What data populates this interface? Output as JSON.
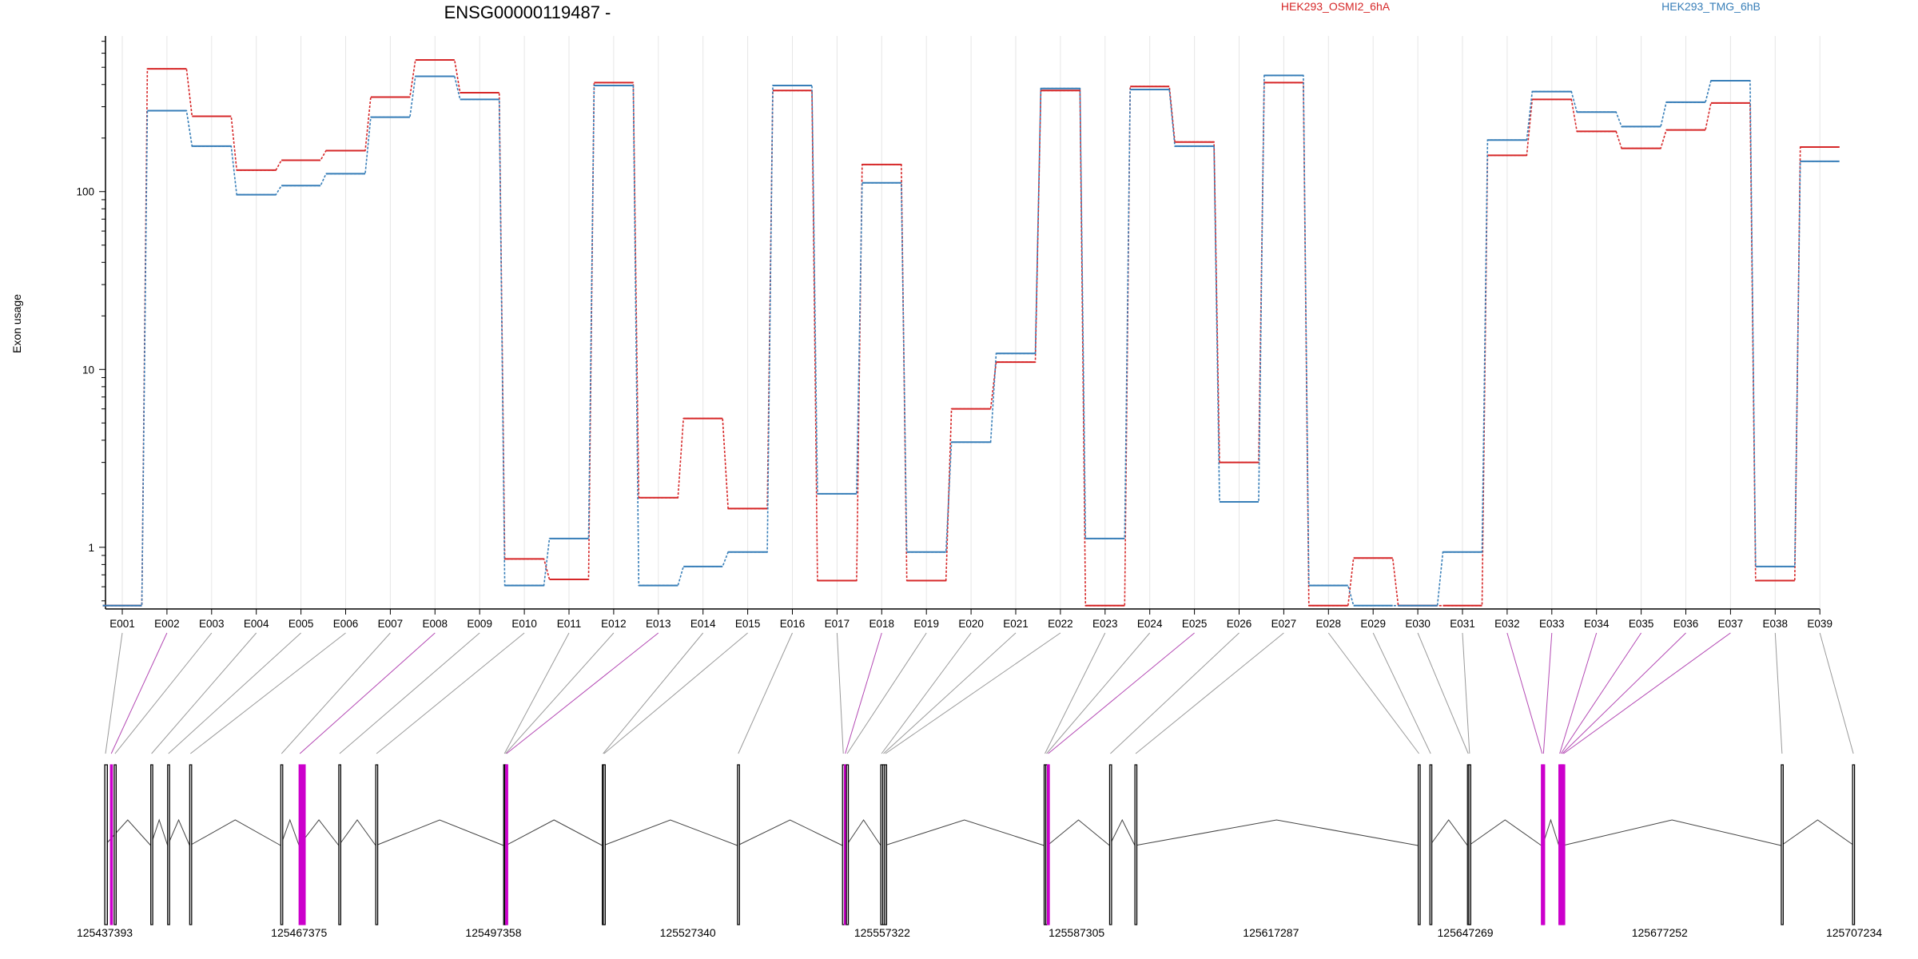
{
  "chart_data": {
    "type": "line",
    "title": "ENSG00000119487 -",
    "ylabel": "Exon usage",
    "xlabel": "",
    "y_scale": "log",
    "ylim": [
      0.45,
      750
    ],
    "y_ticks": [
      1,
      10,
      100
    ],
    "grid": "vertical lines at each exon",
    "legend_placement": "top-right",
    "categories": [
      "E001",
      "E002",
      "E003",
      "E004",
      "E005",
      "E006",
      "E007",
      "E008",
      "E009",
      "E010",
      "E011",
      "E012",
      "E013",
      "E014",
      "E015",
      "E016",
      "E017",
      "E018",
      "E019",
      "E020",
      "E021",
      "E022",
      "E023",
      "E024",
      "E025",
      "E026",
      "E027",
      "E028",
      "E029",
      "E030",
      "E031",
      "E032",
      "E033",
      "E034",
      "E035",
      "E036",
      "E037",
      "E038",
      "E039"
    ],
    "series": [
      {
        "name": "HEK293_OSMI2_6hA",
        "color": "#d62728",
        "values": [
          0.47,
          490,
          265,
          132,
          150,
          170,
          340,
          550,
          360,
          0.86,
          0.66,
          410,
          1.9,
          5.3,
          1.65,
          370,
          0.65,
          142,
          0.65,
          6.0,
          11.0,
          370,
          0.47,
          390,
          190,
          3.0,
          410,
          0.47,
          0.87,
          0.47,
          0.47,
          160,
          330,
          218,
          175,
          222,
          315,
          0.65,
          178
        ]
      },
      {
        "name": "HEK293_TMG_6hB",
        "color": "#377eb8",
        "values": [
          0.47,
          285,
          180,
          96,
          108,
          126,
          262,
          445,
          330,
          0.61,
          1.12,
          395,
          0.61,
          0.78,
          0.94,
          395,
          2.0,
          112,
          0.94,
          3.9,
          12.3,
          380,
          1.12,
          375,
          180,
          1.8,
          450,
          0.61,
          0.47,
          0.47,
          0.94,
          195,
          365,
          280,
          232,
          318,
          420,
          0.78,
          148
        ]
      }
    ],
    "gene_model": {
      "coord_labels": [
        "125437393",
        "125467375",
        "125497358",
        "125527340",
        "125557322",
        "125587305",
        "125617287",
        "125647269",
        "125677252",
        "125707234"
      ],
      "coord_ticks": [
        125437393,
        125467375,
        125497358,
        125527340,
        125557322,
        125587305,
        125617287,
        125647269,
        125677252,
        125707234
      ],
      "coord_range": [
        125437393,
        125707234
      ],
      "exons": [
        {
          "id": "E001",
          "pos": 125437393,
          "width": 420,
          "highlight": false
        },
        {
          "id": "E002",
          "pos": 125438280,
          "width": 60,
          "highlight": true
        },
        {
          "id": "E003",
          "pos": 125438860,
          "width": 40,
          "highlight": false
        },
        {
          "id": "E004",
          "pos": 125444500,
          "width": 40,
          "highlight": false
        },
        {
          "id": "E005",
          "pos": 125447100,
          "width": 40,
          "highlight": false
        },
        {
          "id": "E006",
          "pos": 125450500,
          "width": 40,
          "highlight": false
        },
        {
          "id": "E007",
          "pos": 125464550,
          "width": 40,
          "highlight": false
        },
        {
          "id": "E008",
          "pos": 125467375,
          "width": 950,
          "highlight": true
        },
        {
          "id": "E009",
          "pos": 125473500,
          "width": 40,
          "highlight": false
        },
        {
          "id": "E010",
          "pos": 125479200,
          "width": 40,
          "highlight": false
        },
        {
          "id": "E011",
          "pos": 125498930,
          "width": 40,
          "highlight": false
        },
        {
          "id": "E012",
          "pos": 125499100,
          "width": 40,
          "highlight": false
        },
        {
          "id": "E013",
          "pos": 125499250,
          "width": 40,
          "highlight": true
        },
        {
          "id": "E014",
          "pos": 125514150,
          "width": 40,
          "highlight": false
        },
        {
          "id": "E015",
          "pos": 125514300,
          "width": 40,
          "highlight": false
        },
        {
          "id": "E016",
          "pos": 125535000,
          "width": 40,
          "highlight": false
        },
        {
          "id": "E017",
          "pos": 125551200,
          "width": 40,
          "highlight": false
        },
        {
          "id": "E018",
          "pos": 125551500,
          "width": 40,
          "highlight": true
        },
        {
          "id": "E019",
          "pos": 125551800,
          "width": 40,
          "highlight": false
        },
        {
          "id": "E020",
          "pos": 125557100,
          "width": 40,
          "highlight": false
        },
        {
          "id": "E021",
          "pos": 125557400,
          "width": 40,
          "highlight": false
        },
        {
          "id": "E022",
          "pos": 125557700,
          "width": 40,
          "highlight": false
        },
        {
          "id": "E023",
          "pos": 125582300,
          "width": 40,
          "highlight": false
        },
        {
          "id": "E024",
          "pos": 125582550,
          "width": 40,
          "highlight": false
        },
        {
          "id": "E025",
          "pos": 125582800,
          "width": 40,
          "highlight": true
        },
        {
          "id": "E026",
          "pos": 125592400,
          "width": 40,
          "highlight": false
        },
        {
          "id": "E027",
          "pos": 125596300,
          "width": 40,
          "highlight": false
        },
        {
          "id": "E028",
          "pos": 125640000,
          "width": 40,
          "highlight": false
        },
        {
          "id": "E029",
          "pos": 125641800,
          "width": 40,
          "highlight": false
        },
        {
          "id": "E030",
          "pos": 125647600,
          "width": 40,
          "highlight": false
        },
        {
          "id": "E031",
          "pos": 125647800,
          "width": 40,
          "highlight": false
        },
        {
          "id": "E032",
          "pos": 125659000,
          "width": 40,
          "highlight": true
        },
        {
          "id": "E033",
          "pos": 125659200,
          "width": 40,
          "highlight": true
        },
        {
          "id": "E034",
          "pos": 125661700,
          "width": 40,
          "highlight": true
        },
        {
          "id": "E035",
          "pos": 125661900,
          "width": 40,
          "highlight": true
        },
        {
          "id": "E036",
          "pos": 125662100,
          "width": 40,
          "highlight": true
        },
        {
          "id": "E037",
          "pos": 125662300,
          "width": 40,
          "highlight": true
        },
        {
          "id": "E038",
          "pos": 125696000,
          "width": 40,
          "highlight": false
        },
        {
          "id": "E039",
          "pos": 125707000,
          "width": 200,
          "highlight": false
        }
      ],
      "introns": [
        [
          125437393,
          125444500
        ],
        [
          125444500,
          125447100
        ],
        [
          125447100,
          125450500
        ],
        [
          125450500,
          125464550
        ],
        [
          125464550,
          125467375
        ],
        [
          125467375,
          125473500
        ],
        [
          125473500,
          125479200
        ],
        [
          125479200,
          125498930
        ],
        [
          125499250,
          125514150
        ],
        [
          125514300,
          125535000
        ],
        [
          125535000,
          125551200
        ],
        [
          125551800,
          125557100
        ],
        [
          125557700,
          125582300
        ],
        [
          125582800,
          125592400
        ],
        [
          125592400,
          125596300
        ],
        [
          125596300,
          125640000
        ],
        [
          125641800,
          125647600
        ],
        [
          125647800,
          125659000
        ],
        [
          125659200,
          125661700
        ],
        [
          125662300,
          125696000
        ],
        [
          125696000,
          125707234
        ]
      ],
      "highlight_color": "#cc00cc"
    }
  }
}
